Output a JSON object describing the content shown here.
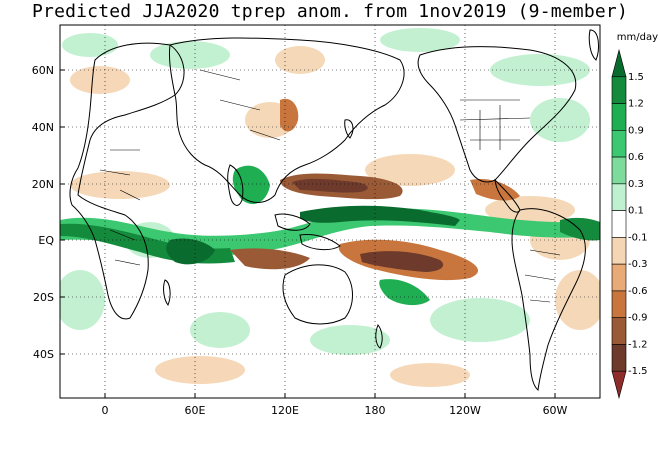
{
  "title": "Predicted JJA2020 tprep anom. from 1nov2019 (9-member)",
  "units": "mm/day",
  "lat_labels": [
    "60N",
    "40N",
    "20N",
    "EQ",
    "20S",
    "40S"
  ],
  "lon_labels": [
    "0",
    "60E",
    "120E",
    "180",
    "120W",
    "60W"
  ],
  "colorbar": {
    "labels": [
      "1.5",
      "1.2",
      "0.9",
      "0.6",
      "0.3",
      "0.1",
      "-0.1",
      "-0.3",
      "-0.6",
      "-0.9",
      "-1.2",
      "-1.5"
    ],
    "colors": [
      "#0a6b2e",
      "#138a3c",
      "#1fae52",
      "#3cc870",
      "#7ddc9c",
      "#bff0cf",
      "#ffffff",
      "#f5d6b4",
      "#e8ab78",
      "#c8763e",
      "#9a5a35",
      "#6e3a2c",
      "#8e2b2b"
    ]
  },
  "map": {
    "lon_range": [
      -30,
      330
    ],
    "lat_range": [
      -55,
      72
    ]
  }
}
